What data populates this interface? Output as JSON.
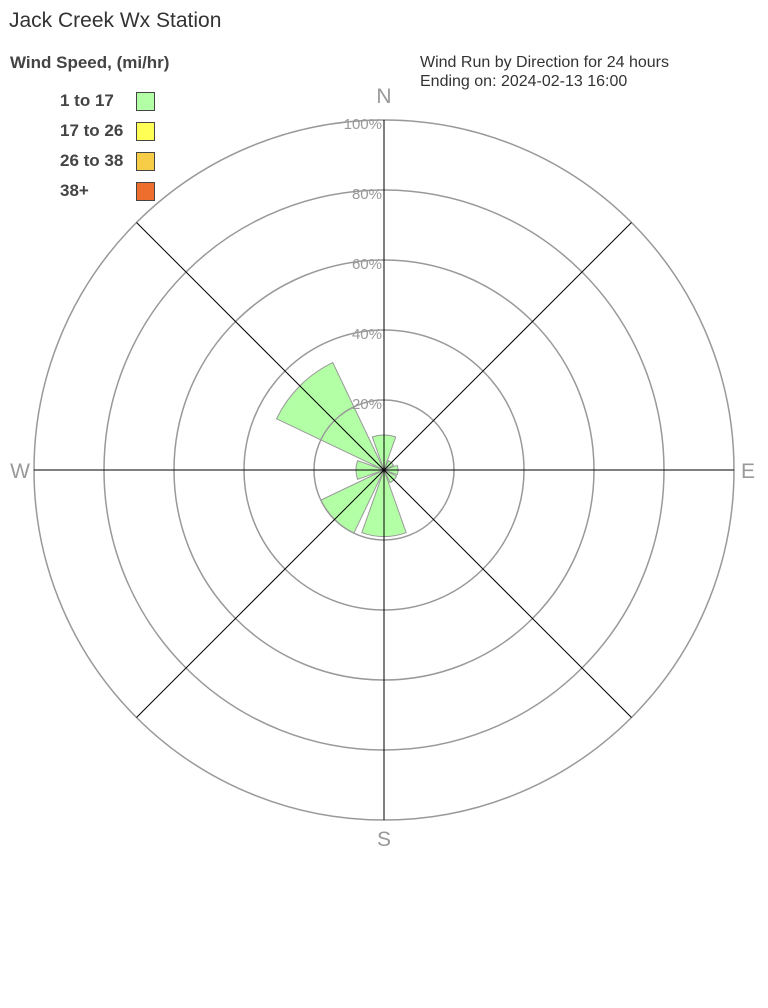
{
  "title": "Jack Creek Wx Station",
  "subtitle_lines": [
    "Wind Run by Direction for 24 hours",
    "Ending on: 2024-02-13 16:00"
  ],
  "chart_data": {
    "type": "wind-rose",
    "legend_title": "Wind Speed, (mi/hr)",
    "legend_placement": "top-left",
    "legend": [
      {
        "label": "1 to 17",
        "color": "#b3ffa6"
      },
      {
        "label": "17 to 26",
        "color": "#ffff55"
      },
      {
        "label": "26 to 38",
        "color": "#f7cd48"
      },
      {
        "label": "38+",
        "color": "#ee6e2d"
      }
    ],
    "compass_labels": [
      "N",
      "E",
      "S",
      "W"
    ],
    "ring_labels": [
      "20%",
      "40%",
      "60%",
      "80%",
      "100%"
    ],
    "rmax": 100,
    "directions": [
      "N",
      "NE",
      "E",
      "SE",
      "S",
      "SW",
      "W",
      "NW"
    ],
    "series": [
      {
        "name": "1 to 17",
        "values": [
          10,
          3,
          4,
          4,
          19,
          20,
          8,
          34
        ]
      }
    ]
  }
}
